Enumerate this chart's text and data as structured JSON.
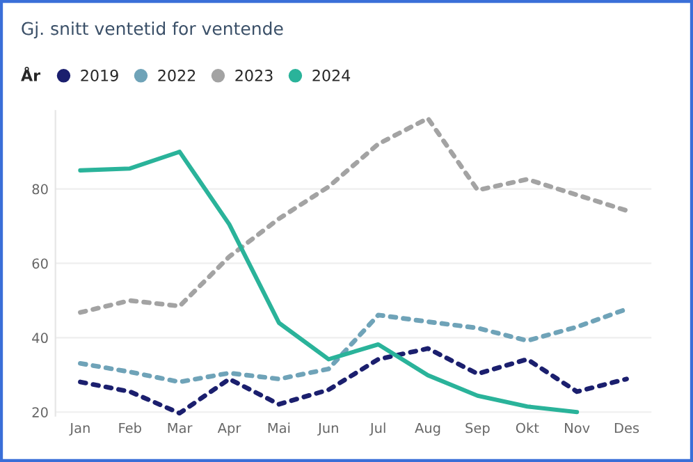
{
  "chart_data": {
    "type": "line",
    "title": "Gj. snitt ventetid for ventende",
    "legend_title": "År",
    "categories": [
      "Jan",
      "Feb",
      "Mar",
      "Apr",
      "Mai",
      "Jun",
      "Jul",
      "Aug",
      "Sep",
      "Okt",
      "Nov",
      "Des"
    ],
    "series": [
      {
        "name": "2019",
        "color": "#1b1f6e",
        "line_style": "dotted",
        "values": [
          28.1,
          25.5,
          19.7,
          28.9,
          22.1,
          26.0,
          34.2,
          37.1,
          30.3,
          34.2,
          25.5,
          28.9
        ]
      },
      {
        "name": "2022",
        "color": "#6fa3b8",
        "line_style": "dotted",
        "values": [
          33.1,
          30.8,
          28.1,
          30.5,
          28.9,
          31.6,
          46.1,
          44.3,
          42.6,
          39.2,
          42.9,
          47.7
        ]
      },
      {
        "name": "2023",
        "color": "#a3a3a3",
        "line_style": "dotted",
        "values": [
          46.8,
          50.0,
          48.5,
          61.8,
          72.0,
          80.6,
          92.1,
          99.0,
          79.7,
          82.6,
          78.4,
          74.2
        ]
      },
      {
        "name": "2024",
        "color": "#2ab39a",
        "line_style": "solid",
        "values": [
          85.0,
          85.5,
          90.0,
          70.5,
          44.0,
          34.2,
          38.2,
          29.9,
          24.4,
          21.5,
          20.0,
          null
        ]
      }
    ],
    "ylim": [
      19,
      101
    ],
    "yticks": [
      20,
      40,
      60,
      80
    ],
    "grid": "y",
    "legend": "top left",
    "marker": "none"
  }
}
